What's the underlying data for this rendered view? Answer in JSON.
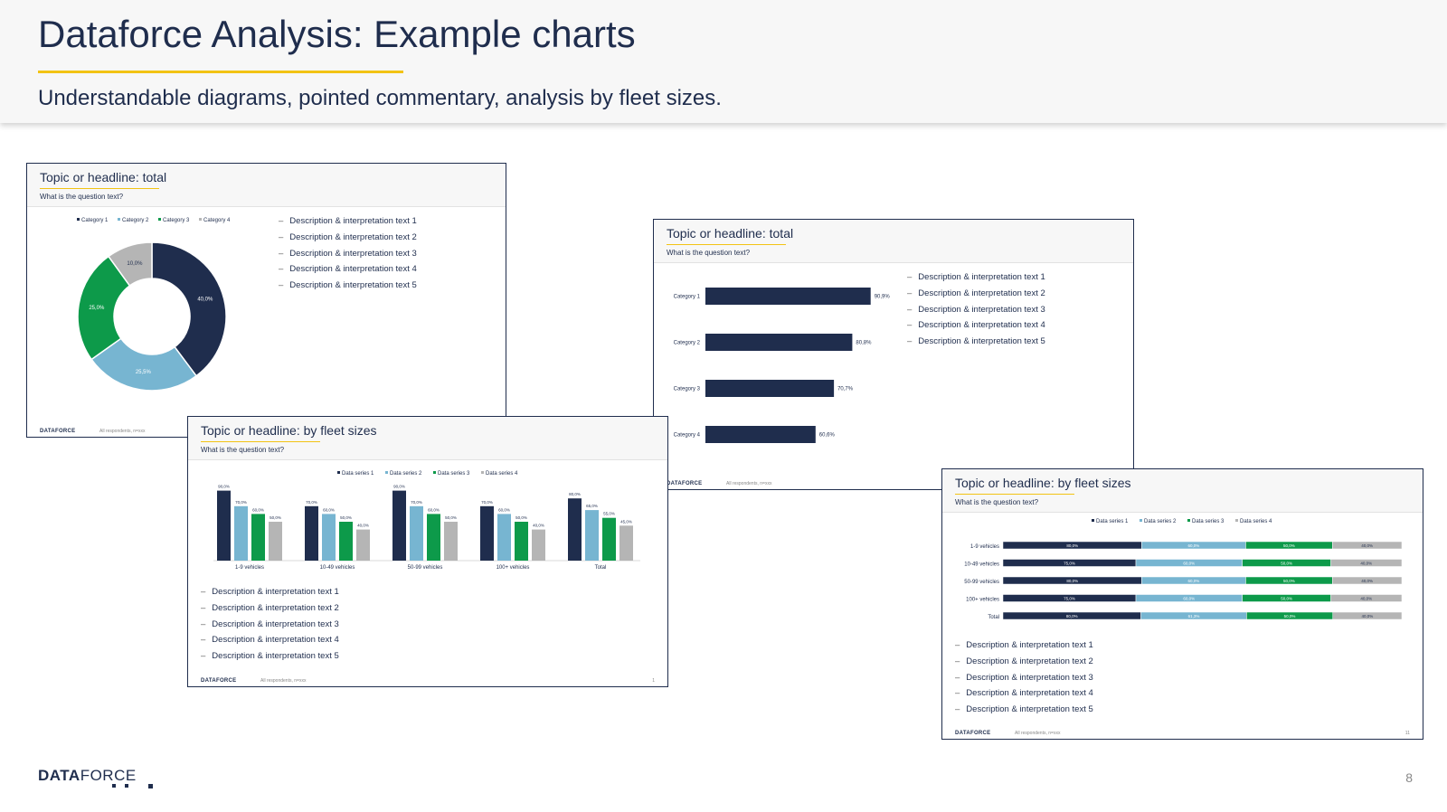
{
  "page": {
    "title": "Dataforce Analysis: Example charts",
    "subtitle": "Understandable diagrams, pointed commentary, analysis by fleet sizes.",
    "logo_bold": "DATA",
    "logo_light": "FORCE",
    "page_number": "8"
  },
  "colors": {
    "navy": "#1f2d4d",
    "light_blue": "#77b5d1",
    "green": "#0d9a4a",
    "grey": "#b5b5b5",
    "accent_yellow": "#f2c314"
  },
  "slides": [
    {
      "title": "Topic or headline:  total",
      "question": "What is the question text?",
      "descriptions": [
        "Description & interpretation text 1",
        "Description & interpretation text 2",
        "Description & interpretation text 3",
        "Description & interpretation text 4",
        "Description & interpretation text 5"
      ],
      "logo": "DATAFORCE",
      "footer": "All respondents, n=xxx",
      "page_number": ""
    },
    {
      "title": "Topic or headline:  by fleet sizes",
      "question": "What is the question text?",
      "descriptions": [
        "Description & interpretation text 1",
        "Description & interpretation text 2",
        "Description & interpretation text 3",
        "Description & interpretation text 4",
        "Description & interpretation text 5"
      ],
      "logo": "DATAFORCE",
      "footer": "All respondents, n=xxx",
      "page_number": "1"
    },
    {
      "title": "Topic or headline:  total",
      "question": "What is the question text?",
      "descriptions": [
        "Description & interpretation text 1",
        "Description & interpretation text 2",
        "Description & interpretation text 3",
        "Description & interpretation text 4",
        "Description & interpretation text 5"
      ],
      "logo": "DATAFORCE",
      "footer": "All respondents, n=xxx",
      "page_number": ""
    },
    {
      "title": "Topic or headline:  by fleet sizes",
      "question": "What is the question text?",
      "descriptions": [
        "Description & interpretation text 1",
        "Description & interpretation text 2",
        "Description & interpretation text 3",
        "Description & interpretation text 4",
        "Description & interpretation text 5"
      ],
      "logo": "DATAFORCE",
      "footer": "All respondents, n=xxx",
      "page_number": "11"
    }
  ],
  "chart_data": [
    {
      "type": "pie",
      "variant": "donut",
      "legend": [
        "Category 1",
        "Category 2",
        "Category 3",
        "Category 4"
      ],
      "legend_position": "top",
      "values": [
        40.0,
        25.5,
        25.0,
        10.0
      ],
      "labels": [
        "40,0%",
        "25,5%",
        "25,0%",
        "10,0%"
      ],
      "colors": [
        "#1f2d4d",
        "#77b5d1",
        "#0d9a4a",
        "#b5b5b5"
      ]
    },
    {
      "type": "bar",
      "orientation": "vertical",
      "categories": [
        "1-9 vehicles",
        "10-49 vehicles",
        "50-99 vehicles",
        "100+ vehicles",
        "Total"
      ],
      "legend_position": "top",
      "series": [
        {
          "name": "Data series 1",
          "values": [
            90.0,
            70.0,
            90.0,
            70.0,
            80.0
          ],
          "labels": [
            "90,0%",
            "70,0%",
            "90,0%",
            "70,0%",
            "80,0%"
          ],
          "color": "#1f2d4d"
        },
        {
          "name": "Data series 2",
          "values": [
            70.0,
            60.0,
            70.0,
            60.0,
            65.0
          ],
          "labels": [
            "70,0%",
            "60,0%",
            "70,0%",
            "60,0%",
            "65,0%"
          ],
          "color": "#77b5d1"
        },
        {
          "name": "Data series 3",
          "values": [
            60.0,
            50.0,
            60.0,
            50.0,
            55.0
          ],
          "labels": [
            "60,0%",
            "50,0%",
            "60,0%",
            "50,0%",
            "55,0%"
          ],
          "color": "#0d9a4a"
        },
        {
          "name": "Data series 4",
          "values": [
            50.0,
            40.0,
            50.0,
            40.0,
            45.0
          ],
          "labels": [
            "50,0%",
            "40,0%",
            "50,0%",
            "40,0%",
            "45,0%"
          ],
          "color": "#b5b5b5"
        }
      ],
      "ylim": [
        0,
        100
      ]
    },
    {
      "type": "bar",
      "orientation": "horizontal",
      "categories": [
        "Category 1",
        "Category 2",
        "Category 3",
        "Category 4"
      ],
      "values": [
        90.9,
        80.8,
        70.7,
        60.6
      ],
      "labels": [
        "90,9%",
        "80,8%",
        "70,7%",
        "60,6%"
      ],
      "xlim": [
        0,
        100
      ],
      "color": "#1f2d4d"
    },
    {
      "type": "bar",
      "orientation": "horizontal",
      "stacked": true,
      "categories": [
        "1-9 vehicles",
        "10-49 vehicles",
        "50-99 vehicles",
        "100+ vehicles",
        "Total"
      ],
      "legend_position": "top",
      "series": [
        {
          "name": "Data series 1",
          "values": [
            80.0,
            75.0,
            80.0,
            75.0,
            80.0
          ],
          "labels": [
            "80,0%",
            "75,0%",
            "80,0%",
            "75,0%",
            "80,0%"
          ],
          "color": "#1f2d4d"
        },
        {
          "name": "Data series 2",
          "values": [
            60.0,
            60.0,
            60.0,
            60.0,
            61.3
          ],
          "labels": [
            "60,0%",
            "60,0%",
            "60,0%",
            "60,0%",
            "61,3%"
          ],
          "color": "#77b5d1"
        },
        {
          "name": "Data series 3",
          "values": [
            50.0,
            50.0,
            50.0,
            50.0,
            50.0
          ],
          "labels": [
            "50,0%",
            "50,0%",
            "50,0%",
            "50,0%",
            "50,0%"
          ],
          "color": "#0d9a4a"
        },
        {
          "name": "Data series 4",
          "values": [
            40.0,
            40.0,
            40.0,
            40.0,
            40.0
          ],
          "labels": [
            "40,0%",
            "40,0%",
            "40,0%",
            "40,0%",
            "40,0%"
          ],
          "color": "#b5b5b5"
        }
      ]
    }
  ]
}
